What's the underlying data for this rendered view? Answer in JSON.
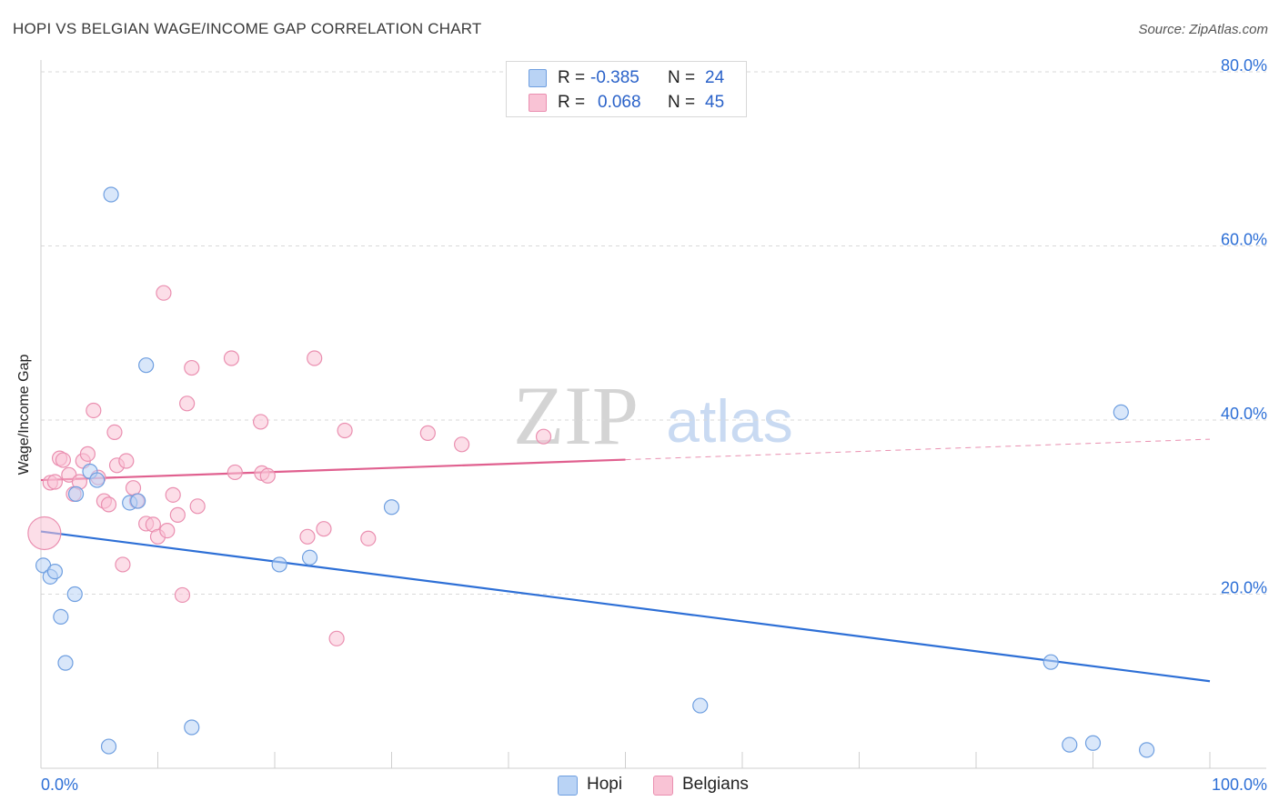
{
  "header": {
    "title": "HOPI VS BELGIAN WAGE/INCOME GAP CORRELATION CHART",
    "source": "Source: ZipAtlas.com"
  },
  "watermark": {
    "zip": "ZIP",
    "atlas": "atlas"
  },
  "colors": {
    "hopi_fill": "#b9d3f5",
    "hopi_stroke": "#6f9fe0",
    "hopi_line": "#2d6fd6",
    "belgians_fill": "#f9c3d5",
    "belgians_stroke": "#ea8fb0",
    "belgians_line": "#e0608f",
    "axis_label": "#2d6fd6",
    "grid": "#d9d9d9"
  },
  "stats": {
    "hopi": {
      "r_label": "R =",
      "r_value": "-0.385",
      "n_label": "N =",
      "n_value": "24"
    },
    "belgians": {
      "r_label": "R =",
      "r_value": "0.068",
      "n_label": "N =",
      "n_value": "45"
    }
  },
  "legend": {
    "hopi": "Hopi",
    "belgians": "Belgians"
  },
  "chart_data": {
    "type": "scatter",
    "title": "HOPI VS BELGIAN WAGE/INCOME GAP CORRELATION CHART",
    "xlabel": "",
    "ylabel": "Wage/Income Gap",
    "xlim": [
      0,
      100
    ],
    "ylim": [
      0,
      80
    ],
    "x_tick_labels": [
      "0.0%",
      "100.0%"
    ],
    "y_ticks": [
      20,
      40,
      60,
      80
    ],
    "y_tick_labels": [
      "20.0%",
      "40.0%",
      "60.0%",
      "80.0%"
    ],
    "grid": true,
    "legend_position": "bottom-center",
    "series": [
      {
        "name": "Hopi",
        "points": [
          [
            0.2,
            23.3
          ],
          [
            0.8,
            22.0
          ],
          [
            1.2,
            22.6
          ],
          [
            1.7,
            17.4
          ],
          [
            2.1,
            12.1
          ],
          [
            2.9,
            20.0
          ],
          [
            3.0,
            31.5
          ],
          [
            4.2,
            34.1
          ],
          [
            4.8,
            33.1
          ],
          [
            5.8,
            2.5
          ],
          [
            6.0,
            65.9
          ],
          [
            7.6,
            30.5
          ],
          [
            8.3,
            30.7
          ],
          [
            9.0,
            46.3
          ],
          [
            12.9,
            4.7
          ],
          [
            20.4,
            23.4
          ],
          [
            23.0,
            24.2
          ],
          [
            30.0,
            30.0
          ],
          [
            56.4,
            7.2
          ],
          [
            86.4,
            12.2
          ],
          [
            88.0,
            2.7
          ],
          [
            90.0,
            2.9
          ],
          [
            92.4,
            40.9
          ],
          [
            94.6,
            2.1
          ]
        ],
        "trend": {
          "x": [
            0,
            100
          ],
          "y": [
            27.2,
            10.0
          ]
        }
      },
      {
        "name": "Belgians",
        "points": [
          [
            0.3,
            27.0
          ],
          [
            0.8,
            32.8
          ],
          [
            1.2,
            32.9
          ],
          [
            1.6,
            35.6
          ],
          [
            1.9,
            35.4
          ],
          [
            2.4,
            33.7
          ],
          [
            2.8,
            31.5
          ],
          [
            3.3,
            32.9
          ],
          [
            3.6,
            35.3
          ],
          [
            4.0,
            36.1
          ],
          [
            4.5,
            41.1
          ],
          [
            4.9,
            33.4
          ],
          [
            5.4,
            30.7
          ],
          [
            5.8,
            30.3
          ],
          [
            6.3,
            38.6
          ],
          [
            6.5,
            34.8
          ],
          [
            7.0,
            23.4
          ],
          [
            7.3,
            35.3
          ],
          [
            7.9,
            32.2
          ],
          [
            8.2,
            30.7
          ],
          [
            9.0,
            28.1
          ],
          [
            9.6,
            28.0
          ],
          [
            10.0,
            26.6
          ],
          [
            10.5,
            54.6
          ],
          [
            10.8,
            27.3
          ],
          [
            11.3,
            31.4
          ],
          [
            11.7,
            29.1
          ],
          [
            12.1,
            19.9
          ],
          [
            12.5,
            41.9
          ],
          [
            12.9,
            46.0
          ],
          [
            13.4,
            30.1
          ],
          [
            16.3,
            47.1
          ],
          [
            16.6,
            34.0
          ],
          [
            18.8,
            39.8
          ],
          [
            18.9,
            33.9
          ],
          [
            19.4,
            33.6
          ],
          [
            22.8,
            26.6
          ],
          [
            23.4,
            47.1
          ],
          [
            24.2,
            27.5
          ],
          [
            25.3,
            14.9
          ],
          [
            26.0,
            38.8
          ],
          [
            28.0,
            26.4
          ],
          [
            33.1,
            38.5
          ],
          [
            36.0,
            37.2
          ],
          [
            43.0,
            38.1
          ]
        ],
        "trend": {
          "x": [
            0,
            100
          ],
          "y": [
            33.1,
            37.8
          ]
        },
        "trend_solid_until": 50
      }
    ]
  }
}
